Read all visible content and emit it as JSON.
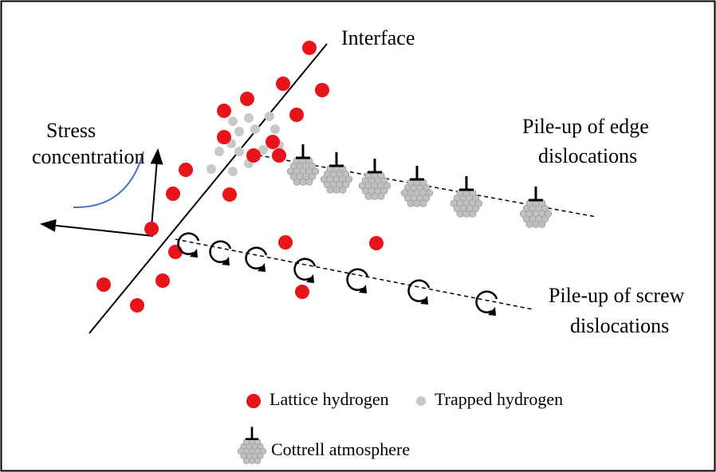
{
  "labels": {
    "interface": "Interface",
    "stress_concentration": [
      "Stress",
      "concentration"
    ],
    "edge_pileup": [
      "Pile-up of edge",
      "dislocations"
    ],
    "screw_pileup": [
      "Pile-up of screw",
      "dislocations"
    ]
  },
  "legend": {
    "lattice_hydrogen": "Lattice hydrogen",
    "trapped_hydrogen": "Trapped hydrogen",
    "cottrell_atmosphere": "Cottrell atmosphere"
  }
}
